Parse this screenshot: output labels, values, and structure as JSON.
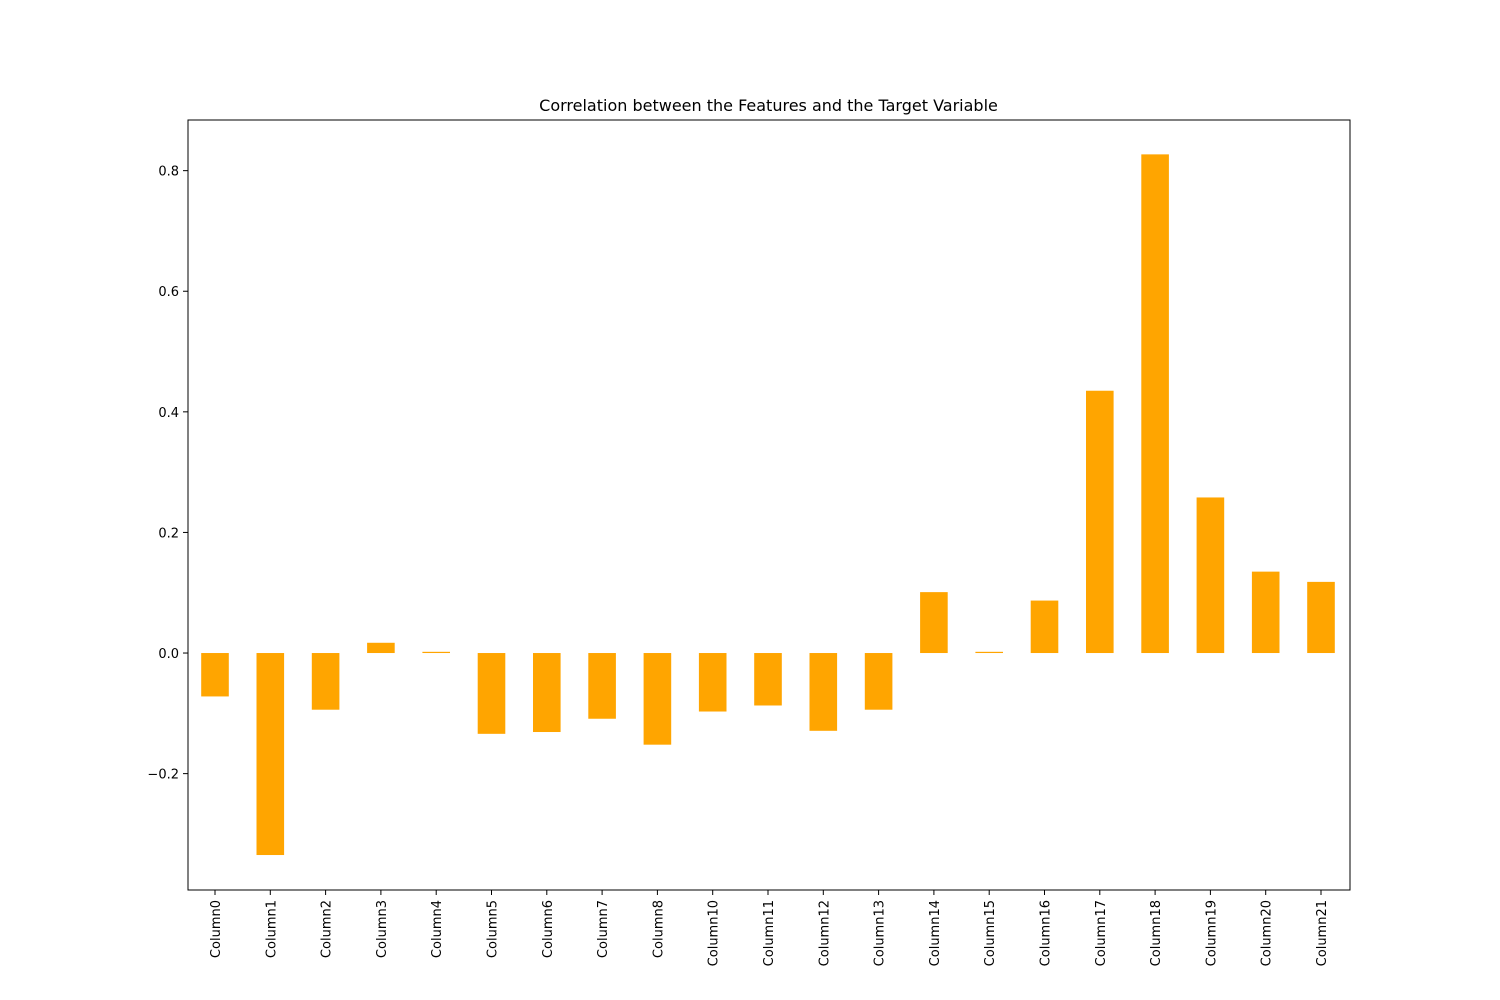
{
  "chart_data": {
    "type": "bar",
    "title": "Correlation between the Features and the Target Variable",
    "xlabel": "",
    "ylabel": "",
    "categories": [
      "Column0",
      "Column1",
      "Column2",
      "Column3",
      "Column4",
      "Column5",
      "Column6",
      "Column7",
      "Column8",
      "Column10",
      "Column11",
      "Column12",
      "Column13",
      "Column14",
      "Column15",
      "Column16",
      "Column17",
      "Column18",
      "Column19",
      "Column20",
      "Column21"
    ],
    "values": [
      -0.072,
      -0.335,
      -0.094,
      0.017,
      0.002,
      -0.134,
      -0.131,
      -0.109,
      -0.152,
      -0.097,
      -0.087,
      -0.129,
      -0.094,
      0.101,
      0.002,
      0.087,
      0.435,
      0.827,
      0.258,
      0.135,
      0.118
    ],
    "yticks": [
      -0.2,
      0.0,
      0.2,
      0.4,
      0.6,
      0.8
    ],
    "ytick_labels": [
      "−0.2",
      "0.0",
      "0.2",
      "0.4",
      "0.6",
      "0.8"
    ],
    "ylim": [
      -0.393,
      0.884
    ],
    "grid": false,
    "color": "#ffa500"
  }
}
